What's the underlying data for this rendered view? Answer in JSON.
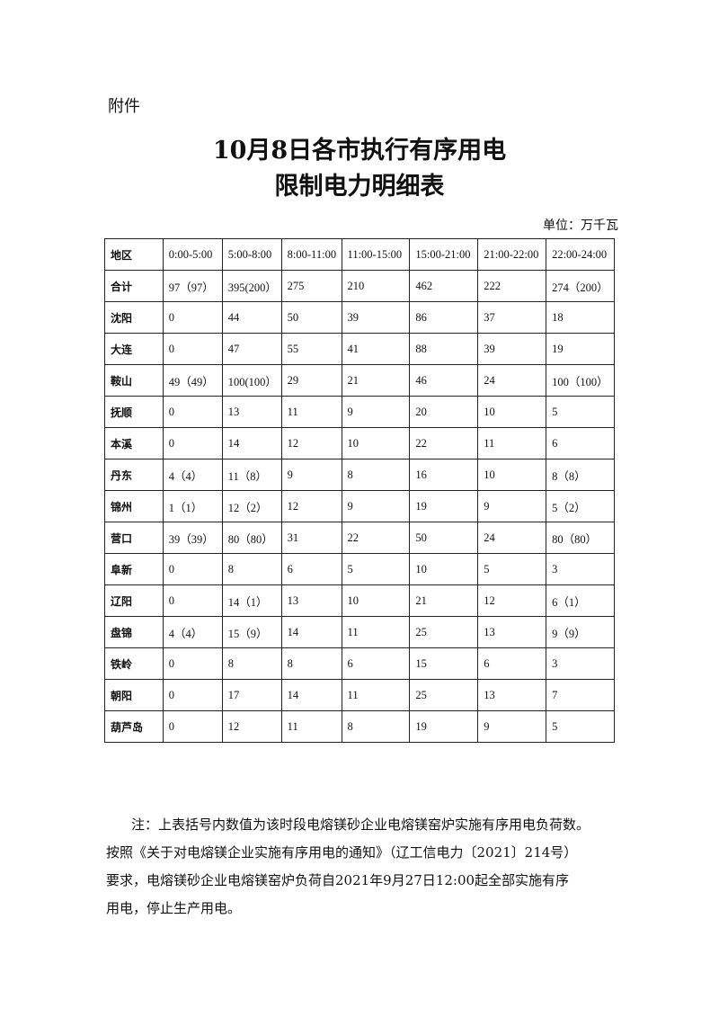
{
  "attachment_label": "附件",
  "title_line1": "10月8日各市执行有序用电",
  "title_line2": "限制电力明细表",
  "unit": "单位：万千瓦",
  "table": {
    "headers": [
      "地区",
      "0:00-5:00",
      "5:00-8:00",
      "8:00-11:00",
      "11:00-15:00",
      "15:00-21:00",
      "21:00-22:00",
      "22:00-24:00"
    ],
    "rows": [
      [
        "合计",
        "97（97）",
        "395(200）",
        "275",
        "210",
        "462",
        "222",
        "274（200）"
      ],
      [
        "沈阳",
        "0",
        "44",
        "50",
        "39",
        "86",
        "37",
        "18"
      ],
      [
        "大连",
        "0",
        "47",
        "55",
        "41",
        "88",
        "39",
        "19"
      ],
      [
        "鞍山",
        "49（49）",
        "100(100）",
        "29",
        "21",
        "46",
        "24",
        "100（100）"
      ],
      [
        "抚顺",
        "0",
        "13",
        "11",
        "9",
        "20",
        "10",
        "5"
      ],
      [
        "本溪",
        "0",
        "14",
        "12",
        "10",
        "22",
        "11",
        "6"
      ],
      [
        "丹东",
        "4（4）",
        "11（8）",
        "9",
        "8",
        "16",
        "10",
        "8（8）"
      ],
      [
        "锦州",
        "1（1）",
        "12（2）",
        "12",
        "9",
        "19",
        "9",
        "5（2）"
      ],
      [
        "营口",
        "39（39）",
        "80（80）",
        "31",
        "22",
        "50",
        "24",
        "80（80）"
      ],
      [
        "阜新",
        "0",
        "8",
        "6",
        "5",
        "10",
        "5",
        "3"
      ],
      [
        "辽阳",
        "0",
        "14（1）",
        "13",
        "10",
        "21",
        "12",
        "6（1）"
      ],
      [
        "盘锦",
        "4（4）",
        "15（9）",
        "14",
        "11",
        "25",
        "13",
        "9（9）"
      ],
      [
        "铁岭",
        "0",
        "8",
        "8",
        "6",
        "15",
        "6",
        "3"
      ],
      [
        "朝阳",
        "0",
        "17",
        "14",
        "11",
        "25",
        "13",
        "7"
      ],
      [
        "葫芦岛",
        "0",
        "12",
        "11",
        "8",
        "19",
        "9",
        "5"
      ]
    ]
  },
  "note": {
    "line1": "注：上表括号内数值为该时段电熔镁砂企业电熔镁窑炉实施有序用电负荷数。",
    "line2": "按照《关于对电熔镁企业实施有序用电的通知》（辽工信电力〔2021〕214号）",
    "line3": "要求，电熔镁砂企业电熔镁窑炉负荷自2021年9月27日12:00起全部实施有序",
    "line4": "用电，停止生产用电。"
  }
}
